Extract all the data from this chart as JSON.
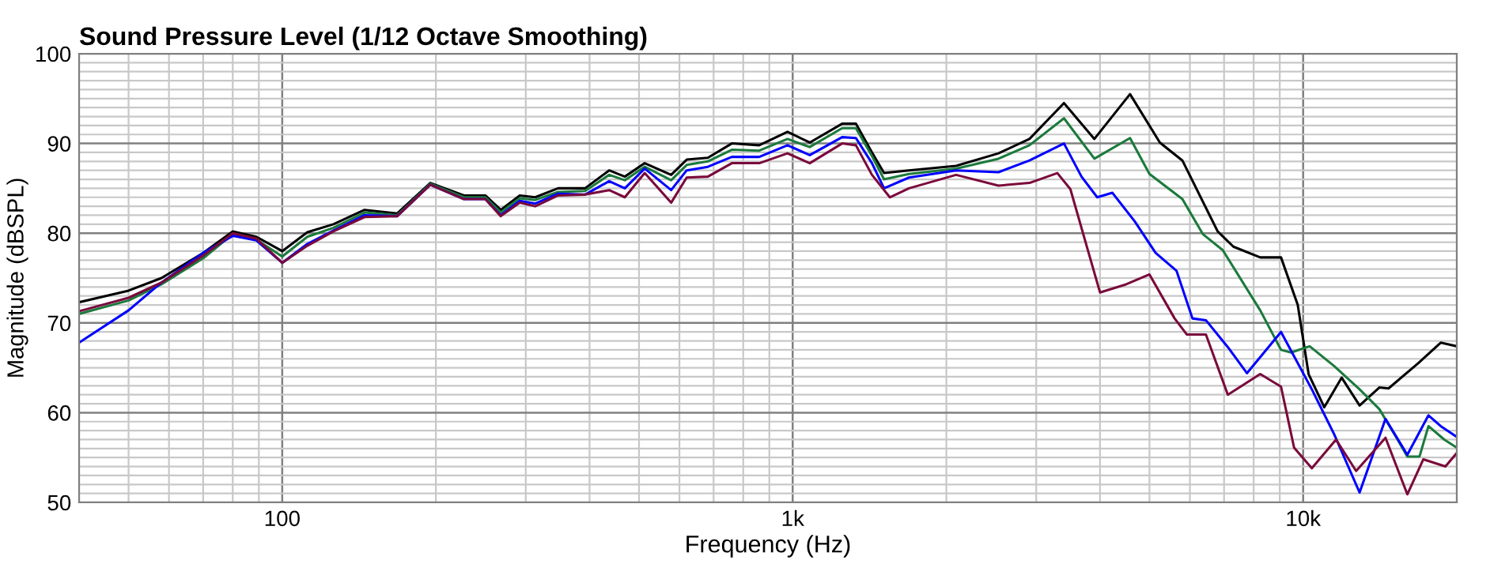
{
  "chart_data": {
    "type": "line",
    "title": "Sound Pressure Level (1/12 Octave Smoothing)",
    "xlabel": "Frequency (Hz)",
    "ylabel": "Magnitude (dBSPL)",
    "log": "x",
    "xlim": [
      40,
      20000
    ],
    "ylim": [
      50,
      100
    ],
    "xticks": [
      {
        "value": 100,
        "label": "100"
      },
      {
        "value": 1000,
        "label": "1k"
      },
      {
        "value": 10000,
        "label": "10k"
      }
    ],
    "yticks": [
      50,
      60,
      70,
      80,
      90,
      100
    ],
    "grid": true,
    "marker": "none",
    "line_style": "solid",
    "series": [
      {
        "color": "#000000",
        "x": [
          40,
          50,
          58,
          70,
          80,
          89,
          100,
          112,
          126,
          145,
          168,
          195,
          227,
          250,
          268,
          292,
          313,
          347,
          392,
          437,
          469,
          513,
          578,
          620,
          682,
          760,
          860,
          977,
          1080,
          1250,
          1330,
          1430,
          1510,
          1690,
          2090,
          2530,
          2910,
          3400,
          3900,
          4580,
          5240,
          5800,
          6800,
          7300,
          8240,
          9050,
          9760,
          10250,
          11000,
          11900,
          12900,
          14100,
          14700,
          16800,
          18600,
          20000
        ],
        "values": [
          72.3,
          73.6,
          75.0,
          77.8,
          80.2,
          79.6,
          78.0,
          80.1,
          81.0,
          82.6,
          82.2,
          85.6,
          84.2,
          84.2,
          82.6,
          84.2,
          84.0,
          85.0,
          85.0,
          87.0,
          86.3,
          87.8,
          86.5,
          88.2,
          88.4,
          90.0,
          89.8,
          91.3,
          90.1,
          92.2,
          92.2,
          89.0,
          86.7,
          87.0,
          87.5,
          88.9,
          90.5,
          94.5,
          90.5,
          95.5,
          90.1,
          88.1,
          80.2,
          78.5,
          77.3,
          77.3,
          72.0,
          64.3,
          60.6,
          63.9,
          60.8,
          62.8,
          62.7,
          65.5,
          67.8,
          67.4
        ]
      },
      {
        "color": "#1b7a3c",
        "x": [
          40,
          50,
          58,
          70,
          80,
          89,
          100,
          112,
          126,
          145,
          168,
          195,
          227,
          250,
          268,
          292,
          313,
          347,
          392,
          437,
          469,
          513,
          578,
          620,
          682,
          760,
          860,
          977,
          1080,
          1250,
          1330,
          1430,
          1510,
          1690,
          2090,
          2530,
          2910,
          3400,
          3900,
          4580,
          5000,
          5800,
          6360,
          6960,
          8240,
          9050,
          9470,
          10300,
          11500,
          12900,
          14100,
          15200,
          16000,
          16900,
          17600,
          18900,
          20000
        ],
        "values": [
          71.0,
          72.5,
          74.3,
          77.2,
          79.9,
          79.3,
          77.4,
          79.6,
          80.6,
          82.3,
          82.0,
          85.5,
          84.0,
          84.0,
          82.3,
          83.9,
          83.7,
          84.6,
          84.7,
          86.5,
          85.9,
          87.4,
          85.9,
          87.6,
          88.0,
          89.3,
          89.2,
          90.5,
          89.6,
          91.7,
          91.7,
          88.6,
          86.0,
          86.6,
          87.2,
          88.3,
          89.8,
          92.8,
          88.3,
          90.6,
          86.6,
          83.8,
          79.9,
          78.1,
          71.4,
          67.0,
          66.7,
          67.4,
          65.2,
          62.6,
          60.4,
          57.3,
          55.1,
          55.1,
          58.5,
          57.0,
          56.1
        ]
      },
      {
        "color": "#0000ff",
        "x": [
          40,
          50,
          58,
          70,
          80,
          89,
          100,
          112,
          126,
          145,
          168,
          195,
          227,
          250,
          268,
          292,
          313,
          347,
          392,
          437,
          469,
          513,
          578,
          620,
          682,
          760,
          860,
          977,
          1080,
          1250,
          1330,
          1430,
          1510,
          1690,
          2090,
          2530,
          2910,
          3400,
          3680,
          3950,
          4230,
          4680,
          5140,
          5650,
          6070,
          6450,
          7120,
          7760,
          9050,
          10400,
          11500,
          12900,
          14500,
          16000,
          17600,
          18600,
          20000
        ],
        "values": [
          67.8,
          71.4,
          74.5,
          77.8,
          79.7,
          79.2,
          76.7,
          78.8,
          80.3,
          82.0,
          81.9,
          85.4,
          83.8,
          83.8,
          82.0,
          83.6,
          83.3,
          84.4,
          84.3,
          85.8,
          85.0,
          87.2,
          84.8,
          87.0,
          87.4,
          88.5,
          88.5,
          89.8,
          88.7,
          90.7,
          90.6,
          87.8,
          85.0,
          86.2,
          87.0,
          86.8,
          88.1,
          90.0,
          86.3,
          84.0,
          84.5,
          81.3,
          77.8,
          75.8,
          70.5,
          70.3,
          67.3,
          64.4,
          69.0,
          62.6,
          57.6,
          51.1,
          59.3,
          55.3,
          59.7,
          58.5,
          57.3
        ]
      },
      {
        "color": "#7a0a3c",
        "x": [
          40,
          50,
          58,
          70,
          80,
          89,
          100,
          112,
          126,
          145,
          168,
          195,
          227,
          250,
          268,
          292,
          313,
          347,
          392,
          437,
          469,
          513,
          578,
          620,
          682,
          760,
          860,
          977,
          1080,
          1250,
          1330,
          1430,
          1550,
          1690,
          2090,
          2530,
          2910,
          3300,
          3500,
          3800,
          4000,
          4500,
          5000,
          5600,
          5920,
          6450,
          7120,
          8240,
          9050,
          9600,
          10400,
          11600,
          12700,
          14500,
          16000,
          17200,
          19000,
          20000
        ],
        "values": [
          71.3,
          72.8,
          74.5,
          77.5,
          80.0,
          79.4,
          76.7,
          78.6,
          80.2,
          81.8,
          81.9,
          85.4,
          83.8,
          83.8,
          81.9,
          83.4,
          83.0,
          84.2,
          84.3,
          84.8,
          84.0,
          86.7,
          83.4,
          86.2,
          86.3,
          87.8,
          87.8,
          88.9,
          87.8,
          90.0,
          89.8,
          86.5,
          84.0,
          85.0,
          86.5,
          85.3,
          85.6,
          86.7,
          84.9,
          77.8,
          73.4,
          74.3,
          75.4,
          70.5,
          68.7,
          68.7,
          62.0,
          64.3,
          62.9,
          56.1,
          53.8,
          57.0,
          53.5,
          57.2,
          50.9,
          54.8,
          54.0,
          55.5
        ]
      }
    ]
  }
}
